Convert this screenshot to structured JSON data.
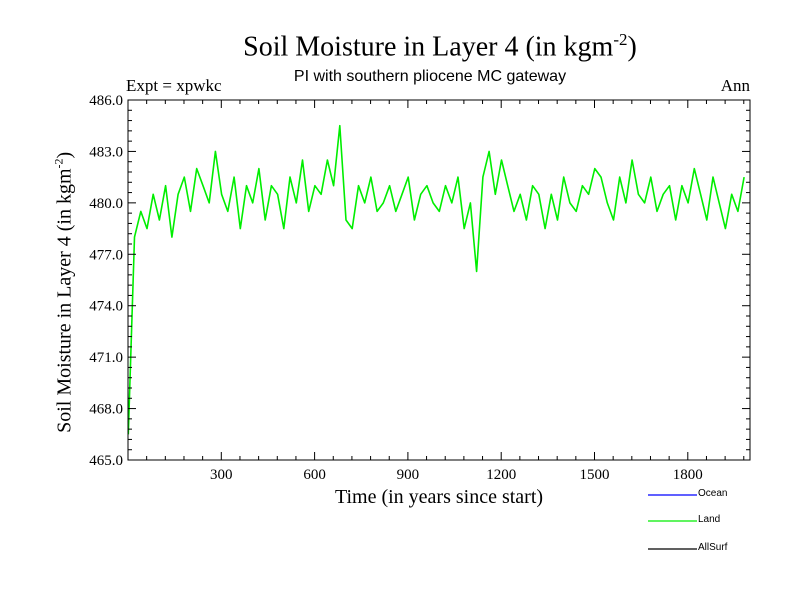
{
  "title": {
    "main": "Soil Moisture in Layer 4 (in kgm",
    "sup": "-2",
    "close": ")"
  },
  "subtitle": "PI with southern pliocene MC gateway",
  "expt_label": "Expt = xpwkc",
  "period_label": "Ann",
  "colors": {
    "land": "#00ee00",
    "ocean": "#0000ff",
    "allsurf": "#000000",
    "axis": "#000000"
  },
  "chart_data": {
    "type": "line",
    "title": "Soil Moisture in Layer 4 (in kgm-2)",
    "subtitle": "PI with southern pliocene MC gateway",
    "xlabel": "Time (in years since start)",
    "ylabel": {
      "main": "Soil Moisture in Layer 4 (in kgm",
      "sup": "-2",
      "close": ")"
    },
    "xlim": [
      0,
      2000
    ],
    "ylim": [
      465.0,
      486.0
    ],
    "xticks": [
      300,
      600,
      900,
      1200,
      1500,
      1800
    ],
    "yticks": [
      465.0,
      468.0,
      471.0,
      474.0,
      477.0,
      480.0,
      483.0,
      486.0
    ],
    "ytick_labels": [
      "465.0",
      "468.0",
      "471.0",
      "474.0",
      "477.0",
      "480.0",
      "483.0",
      "486.0"
    ],
    "legend": [
      {
        "name": "Ocean",
        "color": "#0000ff"
      },
      {
        "name": "Land",
        "color": "#00ee00"
      },
      {
        "name": "AllSurf",
        "color": "#000000"
      }
    ],
    "series": [
      {
        "name": "Land",
        "color": "#00ee00",
        "x_start": 1,
        "x_step": 20,
        "values": [
          466.5,
          478.0,
          479.5,
          478.5,
          480.5,
          479.0,
          481.0,
          478.0,
          480.5,
          481.5,
          479.5,
          482.0,
          481.0,
          480.0,
          483.0,
          480.5,
          479.5,
          481.5,
          478.5,
          481.0,
          480.0,
          482.0,
          479.0,
          481.0,
          480.5,
          478.5,
          481.5,
          480.0,
          482.5,
          479.5,
          481.0,
          480.5,
          482.5,
          481.0,
          484.5,
          479.0,
          478.5,
          481.0,
          480.0,
          481.5,
          479.5,
          480.0,
          481.0,
          479.5,
          480.5,
          481.5,
          479.0,
          480.5,
          481.0,
          480.0,
          479.5,
          481.0,
          480.0,
          481.5,
          478.5,
          480.0,
          476.0,
          481.5,
          483.0,
          480.5,
          482.5,
          481.0,
          479.5,
          480.5,
          479.0,
          481.0,
          480.5,
          478.5,
          480.5,
          479.0,
          481.5,
          480.0,
          479.5,
          481.0,
          480.5,
          482.0,
          481.5,
          480.0,
          479.0,
          481.5,
          480.0,
          482.5,
          480.5,
          480.0,
          481.5,
          479.5,
          480.5,
          481.0,
          479.0,
          481.0,
          480.0,
          482.0,
          480.5,
          479.0,
          481.5,
          480.0,
          478.5,
          480.5,
          479.5,
          481.5
        ]
      },
      {
        "name": "Ocean",
        "color": "#0000ff",
        "values": []
      },
      {
        "name": "AllSurf",
        "color": "#000000",
        "values": []
      }
    ]
  }
}
